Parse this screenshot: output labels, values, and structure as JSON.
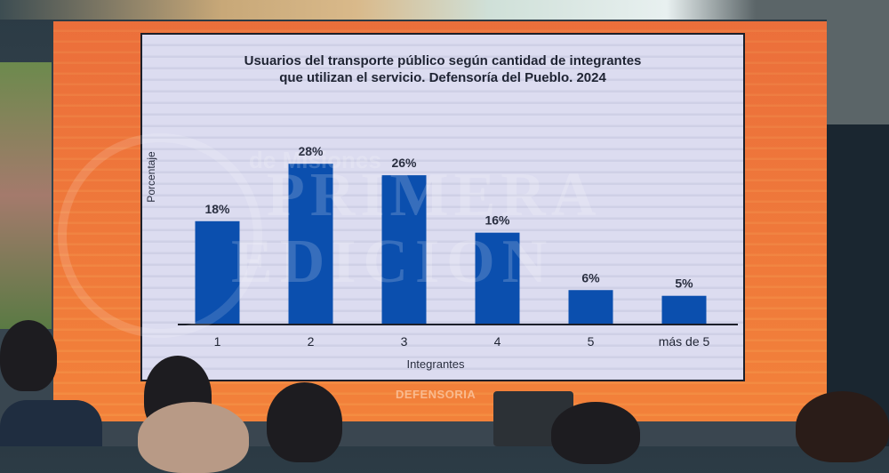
{
  "chart_data": {
    "type": "bar",
    "title": "Usuarios del transporte público según cantidad de integrantes que utilizan el servicio. Defensoría del Pueblo. 2024",
    "title_lines": [
      "Usuarios del transporte público según cantidad de integrantes",
      "que utilizan el servicio. Defensoría del Pueblo. 2024"
    ],
    "xlabel": "Integrantes",
    "ylabel": "Porcentaje",
    "categories": [
      "1",
      "2",
      "3",
      "4",
      "5",
      "más de 5"
    ],
    "values": [
      18,
      28,
      26,
      16,
      6,
      5
    ],
    "data_labels": [
      "18%",
      "28%",
      "26%",
      "16%",
      "6%",
      "5%"
    ],
    "unit": "%",
    "ylim": [
      0,
      30
    ],
    "grid": false,
    "legend": "none",
    "bar_color": "#0b4fae"
  },
  "screen": {
    "footer_logo": "DEFENSORIA",
    "accent_color": "#ef7f3c"
  },
  "watermark": {
    "line1": "PRIMERA",
    "line2": "EDICION",
    "tagline": "de Misiones"
  }
}
